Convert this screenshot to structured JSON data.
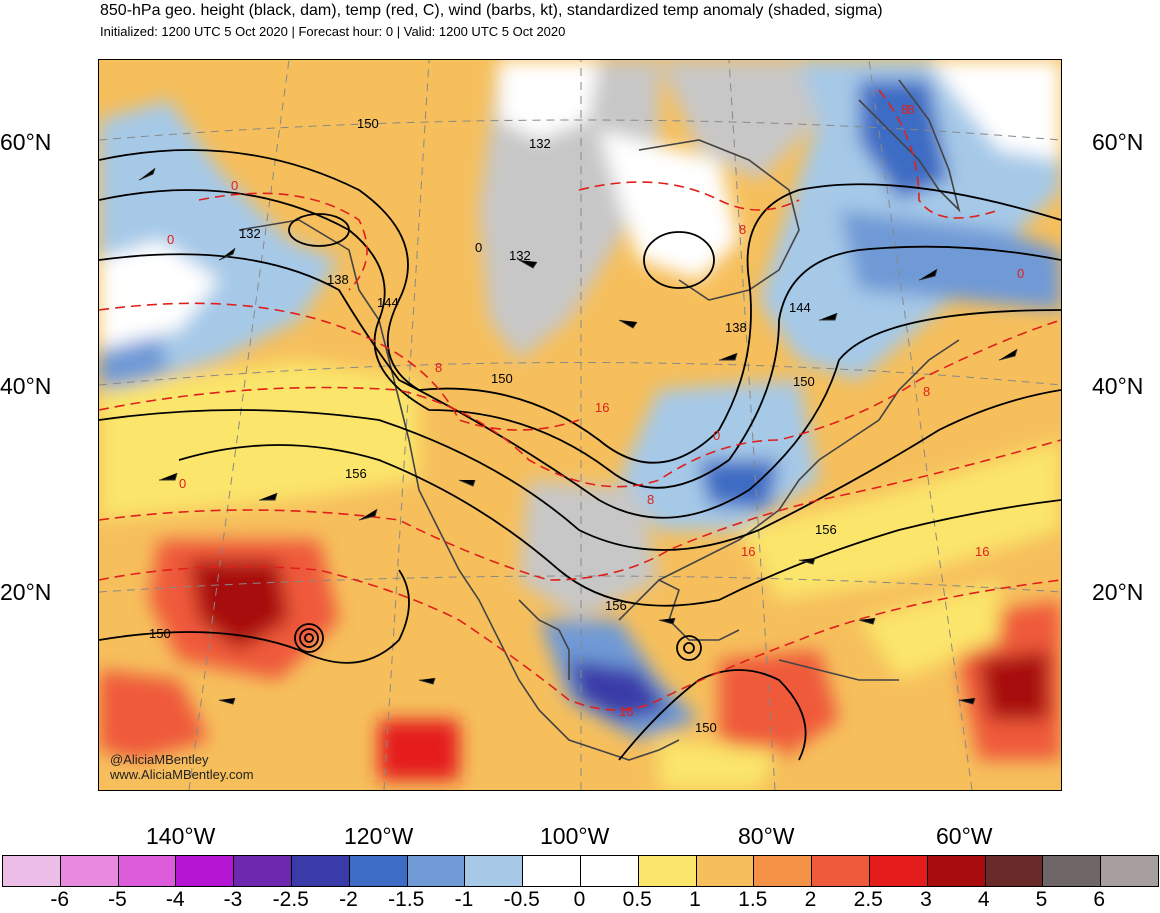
{
  "header": {
    "title": "850-hPa geo. height (black, dam), temp (red, C), wind (barbs, kt), standardized temp anomaly (shaded, sigma)",
    "subtitle": "Initialized: 1200 UTC 5 Oct 2020 | Forecast hour: 0 | Valid: 1200 UTC 5 Oct 2020"
  },
  "axes": {
    "lat_labels": [
      "60°N",
      "40°N",
      "20°N"
    ],
    "lon_labels": [
      "140°W",
      "120°W",
      "100°W",
      "80°W",
      "60°W"
    ]
  },
  "contour_labels": {
    "height": [
      "132",
      "132",
      "138",
      "144",
      "150",
      "156",
      "150",
      "156",
      "150",
      "132",
      "138",
      "144",
      "150",
      "156",
      "150",
      "0"
    ],
    "temp": [
      "0",
      "8",
      "16",
      "8",
      "0",
      "8",
      "16",
      "16",
      "0",
      "8",
      "8",
      "0",
      "8",
      "16",
      "0"
    ]
  },
  "credits": {
    "handle": "@AliciaMBentley",
    "site": "www.AliciaMBentley.com"
  },
  "colorbar": {
    "colors": [
      "#ecbde6",
      "#e88ae0",
      "#dc5cdb",
      "#b516d4",
      "#6e28b0",
      "#3a3aa8",
      "#3d6cc4",
      "#6f9ad6",
      "#a6c9e8",
      "#ffffff",
      "#ffffff",
      "#fbe56a",
      "#f6bf5c",
      "#f39146",
      "#ef5a3a",
      "#e51c1c",
      "#a80c0c",
      "#6b2a2a",
      "#6f6767",
      "#a79e9e"
    ],
    "ticks": [
      "-6",
      "-5",
      "-4",
      "-3",
      "-2.5",
      "-2",
      "-1.5",
      "-1",
      "-0.5",
      "0",
      "0.5",
      "1",
      "1.5",
      "2",
      "2.5",
      "3",
      "4",
      "5",
      "6"
    ]
  }
}
